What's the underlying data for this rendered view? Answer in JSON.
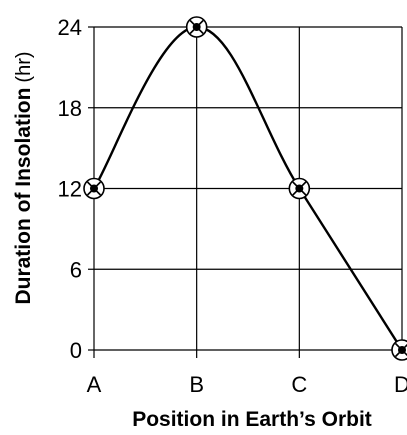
{
  "chart_data": {
    "type": "line",
    "title": "",
    "xlabel": "Position in Earth’s Orbit",
    "ylabel": "Duration of Insolation",
    "ylabel_unit": "(hr)",
    "categories": [
      "A",
      "B",
      "C",
      "D"
    ],
    "series": [
      {
        "values": [
          12,
          24,
          12,
          0
        ],
        "color": "#000000"
      }
    ],
    "ylim": [
      0,
      24
    ],
    "yticks": [
      "0",
      "6",
      "12",
      "18",
      "24"
    ],
    "grid": true,
    "legend": "none",
    "marker": "circled-x"
  }
}
